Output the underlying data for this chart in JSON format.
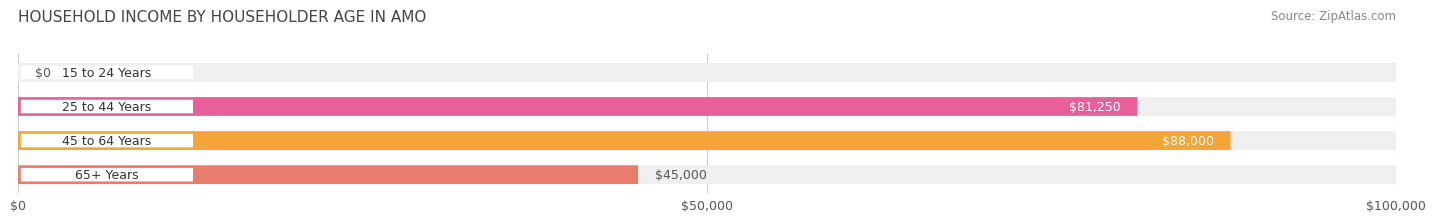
{
  "title": "HOUSEHOLD INCOME BY HOUSEHOLDER AGE IN AMO",
  "source": "Source: ZipAtlas.com",
  "categories": [
    "15 to 24 Years",
    "25 to 44 Years",
    "45 to 64 Years",
    "65+ Years"
  ],
  "values": [
    0,
    81250,
    88000,
    45000
  ],
  "max_value": 100000,
  "bar_colors": [
    "#9b9fcc",
    "#e8609a",
    "#f5a535",
    "#e87d6e"
  ],
  "bar_bg_color": "#efefef",
  "label_colors": [
    "#555555",
    "#ffffff",
    "#ffffff",
    "#555555"
  ],
  "x_ticks": [
    0,
    50000,
    100000
  ],
  "x_tick_labels": [
    "$0",
    "$50,000",
    "$100,000"
  ],
  "background_color": "#ffffff",
  "title_fontsize": 11,
  "source_fontsize": 8.5,
  "label_fontsize": 9,
  "bar_label_fontsize": 9,
  "category_fontsize": 9
}
